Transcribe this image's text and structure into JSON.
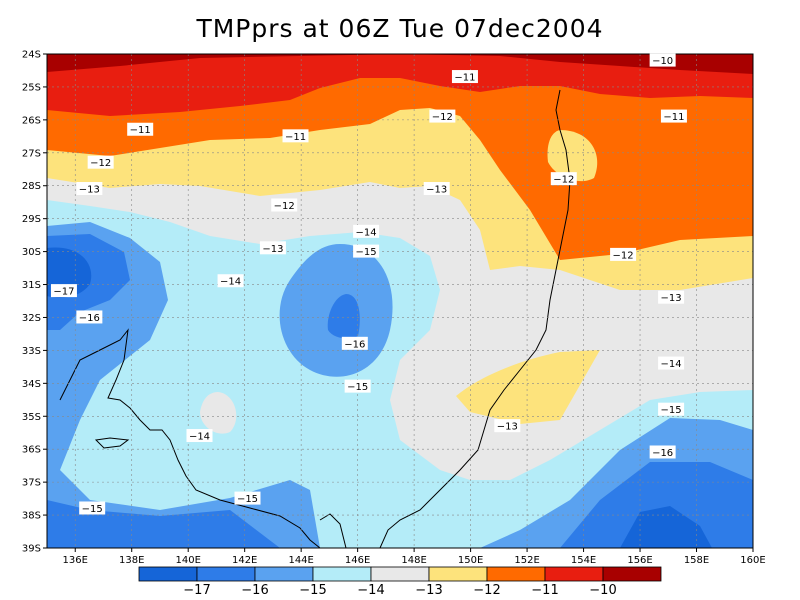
{
  "title": "TMPprs at 06Z Tue 07dec2004",
  "map": {
    "lat_labels": [
      "24S",
      "25S",
      "26S",
      "27S",
      "28S",
      "29S",
      "30S",
      "31S",
      "32S",
      "33S",
      "34S",
      "35S",
      "36S",
      "37S",
      "38S",
      "39S"
    ],
    "lon_labels": [
      "136E",
      "138E",
      "140E",
      "142E",
      "144E",
      "146E",
      "148E",
      "150E",
      "152E",
      "154E",
      "156E",
      "158E",
      "160E"
    ]
  },
  "contour_labels": [
    {
      "text": "-10",
      "lon": 156.8,
      "lat": -24.2
    },
    {
      "text": "-11",
      "lon": 149.8,
      "lat": -24.7
    },
    {
      "text": "-11",
      "lon": 138.3,
      "lat": -26.3
    },
    {
      "text": "-11",
      "lon": 143.8,
      "lat": -26.5
    },
    {
      "text": "-11",
      "lon": 157.2,
      "lat": -25.9
    },
    {
      "text": "-12",
      "lon": 136.9,
      "lat": -27.3
    },
    {
      "text": "-12",
      "lon": 149.0,
      "lat": -25.9
    },
    {
      "text": "-12",
      "lon": 143.4,
      "lat": -28.6
    },
    {
      "text": "-12",
      "lon": 153.3,
      "lat": -27.8
    },
    {
      "text": "-12",
      "lon": 155.4,
      "lat": -30.1
    },
    {
      "text": "-13",
      "lon": 136.5,
      "lat": -28.1
    },
    {
      "text": "-13",
      "lon": 148.8,
      "lat": -28.1
    },
    {
      "text": "-13",
      "lon": 143.0,
      "lat": -29.9
    },
    {
      "text": "-13",
      "lon": 157.1,
      "lat": -31.4
    },
    {
      "text": "-13",
      "lon": 151.3,
      "lat": -35.3
    },
    {
      "text": "-14",
      "lon": 146.3,
      "lat": -29.4
    },
    {
      "text": "-14",
      "lon": 141.5,
      "lat": -30.9
    },
    {
      "text": "-14",
      "lon": 157.1,
      "lat": -33.4
    },
    {
      "text": "-14",
      "lon": 140.4,
      "lat": -35.6
    },
    {
      "text": "-15",
      "lon": 146.3,
      "lat": -30.0
    },
    {
      "text": "-15",
      "lon": 146.0,
      "lat": -34.1
    },
    {
      "text": "-15",
      "lon": 157.1,
      "lat": -34.8
    },
    {
      "text": "-15",
      "lon": 142.1,
      "lat": -37.5
    },
    {
      "text": "-15",
      "lon": 136.6,
      "lat": -37.8
    },
    {
      "text": "-16",
      "lon": 136.5,
      "lat": -32.0
    },
    {
      "text": "-16",
      "lon": 145.9,
      "lat": -32.8
    },
    {
      "text": "-16",
      "lon": 156.8,
      "lat": -36.1
    },
    {
      "text": "-17",
      "lon": 135.6,
      "lat": -31.2
    }
  ],
  "colorbar": {
    "labels": [
      "-17",
      "-16",
      "-15",
      "-14",
      "-13",
      "-12",
      "-11",
      "-10"
    ],
    "colors": [
      "#1565d8",
      "#2e7ce8",
      "#5aa2f0",
      "#b4ecf8",
      "#e8e8e8",
      "#fde37c",
      "#ff6a00",
      "#e81e10",
      "#a80000"
    ]
  }
}
